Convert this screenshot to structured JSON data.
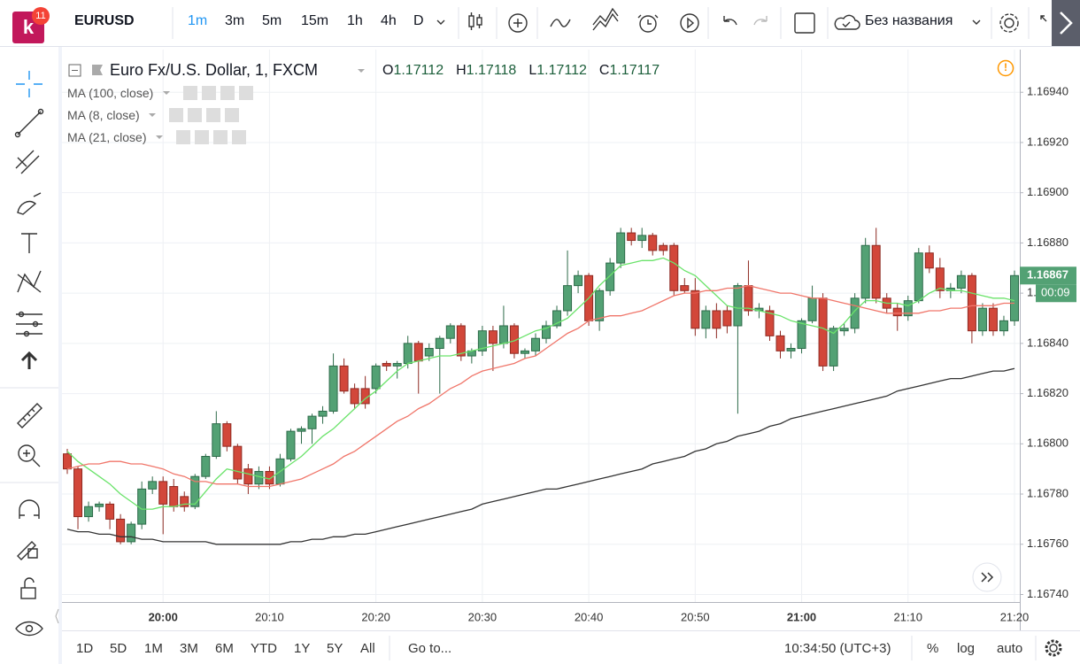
{
  "toolbar": {
    "symbol": "EURUSD",
    "badge": "11",
    "intervals": [
      "1m",
      "3m",
      "5m",
      "15m",
      "1h",
      "4h",
      "D"
    ],
    "layout_name": "Без названия"
  },
  "legend": {
    "title": "Euro Fx/U.S. Dollar, 1, FXCM",
    "ohlc": [
      {
        "label": "O",
        "value": "1.17112"
      },
      {
        "label": "H",
        "value": "1.17118"
      },
      {
        "label": "L",
        "value": "1.17112"
      },
      {
        "label": "C",
        "value": "1.17117"
      }
    ]
  },
  "chart_data": {
    "type": "candlestick",
    "categories": [
      null,
      null,
      null,
      null,
      null,
      null,
      null,
      null,
      null,
      "20:00",
      null,
      null,
      null,
      null,
      null,
      null,
      null,
      null,
      null,
      "20:10",
      null,
      null,
      null,
      null,
      null,
      null,
      null,
      null,
      null,
      "20:20",
      null,
      null,
      null,
      null,
      null,
      null,
      null,
      null,
      null,
      "20:30",
      null,
      null,
      null,
      null,
      null,
      null,
      null,
      null,
      null,
      "20:40",
      null,
      null,
      null,
      null,
      null,
      null,
      null,
      null,
      null,
      "20:50",
      null,
      null,
      null,
      null,
      null,
      null,
      null,
      null,
      null,
      "21:00",
      null,
      null,
      null,
      null,
      null,
      null,
      null,
      null,
      null,
      "21:10",
      null,
      null,
      null,
      null,
      null,
      null,
      null,
      null,
      null,
      "21:20"
    ],
    "ohlc": [
      [
        1.16796,
        1.16798,
        1.16788,
        1.1679
      ],
      [
        1.1679,
        1.16791,
        1.16766,
        1.16771
      ],
      [
        1.16771,
        1.16777,
        1.16769,
        1.16775
      ],
      [
        1.16775,
        1.16777,
        1.16773,
        1.16776
      ],
      [
        1.16776,
        1.16777,
        1.16766,
        1.1677
      ],
      [
        1.1677,
        1.16772,
        1.1676,
        1.16761
      ],
      [
        1.16761,
        1.16769,
        1.1676,
        1.16768
      ],
      [
        1.16768,
        1.16785,
        1.16766,
        1.16782
      ],
      [
        1.16782,
        1.16787,
        1.1678,
        1.16785
      ],
      [
        1.16785,
        1.16787,
        1.16764,
        1.16776
      ],
      [
        1.16783,
        1.16786,
        1.16773,
        1.16775
      ],
      [
        1.16779,
        1.16781,
        1.16773,
        1.16775
      ],
      [
        1.16775,
        1.16788,
        1.16774,
        1.16787
      ],
      [
        1.16787,
        1.16796,
        1.16786,
        1.16795
      ],
      [
        1.16795,
        1.16813,
        1.16794,
        1.16808
      ],
      [
        1.16808,
        1.16809,
        1.16797,
        1.16799
      ],
      [
        1.16799,
        1.168,
        1.16784,
        1.16786
      ],
      [
        1.1679,
        1.16792,
        1.1678,
        1.16784
      ],
      [
        1.16784,
        1.16791,
        1.16782,
        1.16789
      ],
      [
        1.16789,
        1.16791,
        1.16782,
        1.16784
      ],
      [
        1.16784,
        1.16796,
        1.16783,
        1.16794
      ],
      [
        1.16794,
        1.16806,
        1.16793,
        1.16805
      ],
      [
        1.16805,
        1.16807,
        1.168,
        1.16806
      ],
      [
        1.16806,
        1.16812,
        1.168,
        1.16811
      ],
      [
        1.16811,
        1.16815,
        1.16808,
        1.16813
      ],
      [
        1.16813,
        1.16836,
        1.16812,
        1.16831
      ],
      [
        1.16831,
        1.16834,
        1.1682,
        1.16821
      ],
      [
        1.16822,
        1.16824,
        1.16814,
        1.16816
      ],
      [
        1.16822,
        1.16827,
        1.16814,
        1.16816
      ],
      [
        1.16822,
        1.16832,
        1.1682,
        1.16831
      ],
      [
        1.16832,
        1.16833,
        1.16829,
        1.16831
      ],
      [
        1.16831,
        1.16833,
        1.16826,
        1.16832
      ],
      [
        1.16832,
        1.16843,
        1.1683,
        1.1684
      ],
      [
        1.1684,
        1.16841,
        1.1682,
        1.16833
      ],
      [
        1.16835,
        1.1684,
        1.16833,
        1.16838
      ],
      [
        1.16838,
        1.16843,
        1.1682,
        1.16842
      ],
      [
        1.16842,
        1.16848,
        1.1684,
        1.16847
      ],
      [
        1.16847,
        1.16848,
        1.16833,
        1.16835
      ],
      [
        1.16835,
        1.16838,
        1.16832,
        1.16837
      ],
      [
        1.16837,
        1.16847,
        1.16835,
        1.16845
      ],
      [
        1.16845,
        1.16847,
        1.16829,
        1.1684
      ],
      [
        1.1684,
        1.16855,
        1.16838,
        1.16847
      ],
      [
        1.16847,
        1.16848,
        1.16834,
        1.16836
      ],
      [
        1.16836,
        1.16838,
        1.16834,
        1.16837
      ],
      [
        1.16837,
        1.16844,
        1.16835,
        1.16842
      ],
      [
        1.16842,
        1.16849,
        1.1684,
        1.16847
      ],
      [
        1.16847,
        1.16855,
        1.16846,
        1.16853
      ],
      [
        1.16853,
        1.16877,
        1.16851,
        1.16863
      ],
      [
        1.16863,
        1.16869,
        1.1686,
        1.16867
      ],
      [
        1.16867,
        1.16868,
        1.16847,
        1.16849
      ],
      [
        1.16849,
        1.16862,
        1.16845,
        1.16861
      ],
      [
        1.16861,
        1.16874,
        1.16859,
        1.16872
      ],
      [
        1.16872,
        1.16886,
        1.1687,
        1.16884
      ],
      [
        1.16884,
        1.16886,
        1.16879,
        1.16881
      ],
      [
        1.16881,
        1.16886,
        1.16878,
        1.16883
      ],
      [
        1.16883,
        1.16884,
        1.16875,
        1.16877
      ],
      [
        1.16879,
        1.1688,
        1.16875,
        1.16877
      ],
      [
        1.16879,
        1.1688,
        1.16859,
        1.16861
      ],
      [
        1.16863,
        1.16866,
        1.1686,
        1.16861
      ],
      [
        1.16861,
        1.16866,
        1.16843,
        1.16846
      ],
      [
        1.16846,
        1.16855,
        1.16842,
        1.16853
      ],
      [
        1.16853,
        1.16856,
        1.16842,
        1.16846
      ],
      [
        1.16853,
        1.16855,
        1.16844,
        1.16847
      ],
      [
        1.16847,
        1.16864,
        1.16812,
        1.16863
      ],
      [
        1.16863,
        1.16873,
        1.16851,
        1.16853
      ],
      [
        1.16853,
        1.16856,
        1.1685,
        1.16854
      ],
      [
        1.16853,
        1.16855,
        1.16841,
        1.16843
      ],
      [
        1.16843,
        1.16845,
        1.16834,
        1.16837
      ],
      [
        1.16837,
        1.1684,
        1.16834,
        1.16838
      ],
      [
        1.16838,
        1.1685,
        1.16836,
        1.16849
      ],
      [
        1.16849,
        1.16863,
        1.16848,
        1.16858
      ],
      [
        1.16858,
        1.1686,
        1.16829,
        1.16831
      ],
      [
        1.16831,
        1.16847,
        1.16829,
        1.16846
      ],
      [
        1.16845,
        1.16848,
        1.16843,
        1.16846
      ],
      [
        1.16846,
        1.1686,
        1.16844,
        1.16858
      ],
      [
        1.16858,
        1.16882,
        1.16856,
        1.16879
      ],
      [
        1.16879,
        1.16886,
        1.16856,
        1.16858
      ],
      [
        1.16858,
        1.1686,
        1.16852,
        1.16854
      ],
      [
        1.16854,
        1.16856,
        1.16845,
        1.16851
      ],
      [
        1.16851,
        1.16859,
        1.16849,
        1.16857
      ],
      [
        1.16857,
        1.16878,
        1.16856,
        1.16876
      ],
      [
        1.16876,
        1.16879,
        1.16868,
        1.1687
      ],
      [
        1.1687,
        1.16874,
        1.16858,
        1.16861
      ],
      [
        1.16861,
        1.16864,
        1.16858,
        1.16862
      ],
      [
        1.16862,
        1.16869,
        1.1686,
        1.16867
      ],
      [
        1.16867,
        1.16868,
        1.1684,
        1.16845
      ],
      [
        1.16845,
        1.16856,
        1.16843,
        1.16854
      ],
      [
        1.16854,
        1.16856,
        1.16843,
        1.16845
      ],
      [
        1.16845,
        1.16851,
        1.16843,
        1.16849
      ],
      [
        1.16849,
        1.16869,
        1.16847,
        1.16867
      ]
    ],
    "up_color": "#53a174",
    "down_color": "#d2473a",
    "series": [
      {
        "name": "MA (100, close)",
        "color": "#333333",
        "values": [
          1.16766,
          1.16765,
          1.16765,
          1.16764,
          1.16764,
          1.16763,
          1.16763,
          1.16762,
          1.16762,
          1.16761,
          1.16761,
          1.16761,
          1.16761,
          1.16761,
          1.1676,
          1.1676,
          1.1676,
          1.1676,
          1.1676,
          1.1676,
          1.1676,
          1.16761,
          1.16761,
          1.16762,
          1.16762,
          1.16763,
          1.16763,
          1.16764,
          1.16764,
          1.16765,
          1.16766,
          1.16767,
          1.16768,
          1.16769,
          1.1677,
          1.16771,
          1.16772,
          1.16773,
          1.16774,
          1.16776,
          1.16777,
          1.16778,
          1.16779,
          1.1678,
          1.16781,
          1.16782,
          1.16782,
          1.16783,
          1.16784,
          1.16785,
          1.16786,
          1.16787,
          1.16788,
          1.16789,
          1.1679,
          1.16792,
          1.16793,
          1.16794,
          1.16795,
          1.16797,
          1.16798,
          1.168,
          1.16801,
          1.16803,
          1.16804,
          1.16805,
          1.16807,
          1.16808,
          1.1681,
          1.16811,
          1.16812,
          1.16813,
          1.16814,
          1.16815,
          1.16816,
          1.16817,
          1.16818,
          1.16819,
          1.16821,
          1.16822,
          1.16823,
          1.16824,
          1.16825,
          1.16826,
          1.16826,
          1.16827,
          1.16828,
          1.16829,
          1.16829,
          1.1683
        ]
      },
      {
        "name": "MA (8, close)",
        "color": "#6be36b",
        "values": [
          1.16797,
          1.16793,
          1.1679,
          1.16787,
          1.16784,
          1.1678,
          1.16777,
          1.16774,
          1.16774,
          1.16775,
          1.16775,
          1.16776,
          1.16776,
          1.16781,
          1.16786,
          1.1679,
          1.16789,
          1.16788,
          1.16787,
          1.16786,
          1.16789,
          1.16792,
          1.16795,
          1.16799,
          1.16803,
          1.16806,
          1.1681,
          1.16814,
          1.16818,
          1.16821,
          1.16825,
          1.16829,
          1.16832,
          1.16833,
          1.16834,
          1.16835,
          1.16835,
          1.16836,
          1.16837,
          1.16838,
          1.16839,
          1.1684,
          1.16841,
          1.16843,
          1.16845,
          1.16846,
          1.16848,
          1.1685,
          1.16854,
          1.16858,
          1.16863,
          1.16867,
          1.16871,
          1.16872,
          1.16873,
          1.16873,
          1.16874,
          1.16872,
          1.16869,
          1.16867,
          1.16863,
          1.16859,
          1.16855,
          1.16854,
          1.16854,
          1.16853,
          1.16852,
          1.16851,
          1.16849,
          1.16848,
          1.16847,
          1.16846,
          1.16844,
          1.16848,
          1.16853,
          1.16857,
          1.16857,
          1.16856,
          1.16856,
          1.16855,
          1.16857,
          1.1686,
          1.16862,
          1.16861,
          1.16861,
          1.1686,
          1.16859,
          1.16858,
          1.16858,
          1.16857
        ]
      },
      {
        "name": "MA (21, close)",
        "color": "#f0766a",
        "values": [
          1.1679,
          1.16791,
          1.16792,
          1.16792,
          1.16793,
          1.16793,
          1.16792,
          1.16792,
          1.16791,
          1.1679,
          1.16788,
          1.16787,
          1.16785,
          1.16785,
          1.16784,
          1.16784,
          1.16784,
          1.16783,
          1.16783,
          1.16783,
          1.16784,
          1.16785,
          1.16786,
          1.16788,
          1.1679,
          1.16792,
          1.16795,
          1.16797,
          1.168,
          1.16803,
          1.16806,
          1.16809,
          1.16811,
          1.16814,
          1.16816,
          1.16819,
          1.16822,
          1.16824,
          1.16827,
          1.16829,
          1.1683,
          1.16831,
          1.16832,
          1.16834,
          1.16835,
          1.16838,
          1.16841,
          1.16844,
          1.16846,
          1.16849,
          1.1685,
          1.16851,
          1.16851,
          1.16852,
          1.16853,
          1.16855,
          1.16857,
          1.16859,
          1.1686,
          1.1686,
          1.16861,
          1.16861,
          1.16862,
          1.16862,
          1.16863,
          1.16862,
          1.16861,
          1.1686,
          1.1686,
          1.16859,
          1.16858,
          1.16858,
          1.16857,
          1.16856,
          1.16855,
          1.16854,
          1.16853,
          1.16852,
          1.16852,
          1.16852,
          1.16852,
          1.16853,
          1.16853,
          1.16854,
          1.16854,
          1.16855,
          1.16855,
          1.16855,
          1.16856,
          1.16856
        ]
      }
    ],
    "ylim": [
      1.16737,
      1.16957
    ],
    "yticks": [
      {
        "value": 1.1694,
        "label": "1.16940"
      },
      {
        "value": 1.1692,
        "label": "1.16920"
      },
      {
        "value": 1.169,
        "label": "1.16900"
      },
      {
        "value": 1.1688,
        "label": "1.16880"
      },
      {
        "value": 1.1686,
        "label": "1.16860"
      },
      {
        "value": 1.1684,
        "label": "1.16840"
      },
      {
        "value": 1.1682,
        "label": "1.16820"
      },
      {
        "value": 1.168,
        "label": "1.16800"
      },
      {
        "value": 1.1678,
        "label": "1.16780"
      },
      {
        "value": 1.1676,
        "label": "1.16760"
      },
      {
        "value": 1.1674,
        "label": "1.16740"
      }
    ],
    "grid": true,
    "last_price": {
      "value": 1.16867,
      "label": "1.16867"
    },
    "countdown": "00:09"
  },
  "bottom_bar": {
    "ranges": [
      "1D",
      "5D",
      "1M",
      "3M",
      "6M",
      "YTD",
      "1Y",
      "5Y",
      "All"
    ],
    "goto": "Go to...",
    "clock": "10:34:50 (UTC+3)",
    "options": [
      "%",
      "log",
      "auto"
    ]
  }
}
